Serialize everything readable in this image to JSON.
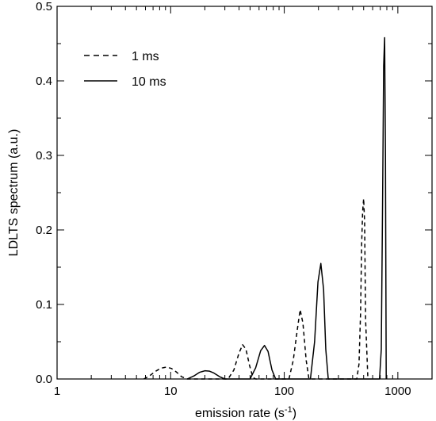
{
  "chart_data": {
    "type": "line",
    "xscale": "log",
    "xlim": [
      1,
      2000
    ],
    "ylim": [
      0,
      0.5
    ],
    "xlabel": "emission rate (s",
    "xlabel_sup": "-1",
    "xlabel_end": ")",
    "ylabel": "LDLTS spectrum (a.u.)",
    "xticks": [
      {
        "value": 1,
        "label": "1"
      },
      {
        "value": 10,
        "label": "10"
      },
      {
        "value": 100,
        "label": "100"
      },
      {
        "value": 1000,
        "label": "1000"
      }
    ],
    "yticks": [
      {
        "value": 0,
        "label": "0.0"
      },
      {
        "value": 0.1,
        "label": "0.1"
      },
      {
        "value": 0.2,
        "label": "0.2"
      },
      {
        "value": 0.3,
        "label": "0.3"
      },
      {
        "value": 0.4,
        "label": "0.4"
      },
      {
        "value": 0.5,
        "label": "0.5"
      }
    ],
    "grid": false,
    "legend_position": "top-left",
    "series": [
      {
        "name": "1 ms",
        "style": "dashed",
        "x": [
          5.8,
          6.5,
          7.3,
          8.2,
          9.2,
          10.2,
          11.3,
          12.5,
          14.0,
          32.0,
          36.0,
          40.0,
          43.0,
          46.0,
          49.5,
          53.0,
          56.0,
          110,
          120,
          130,
          138,
          146,
          156,
          165,
          435,
          455,
          470,
          480,
          490,
          500,
          510,
          520,
          545
        ],
        "y": [
          0,
          0.004,
          0.01,
          0.0145,
          0.016,
          0.014,
          0.009,
          0.003,
          0,
          0,
          0.012,
          0.035,
          0.046,
          0.04,
          0.018,
          0.002,
          0,
          0,
          0.025,
          0.065,
          0.093,
          0.075,
          0.025,
          0,
          0,
          0.02,
          0.09,
          0.18,
          0.225,
          0.242,
          0.21,
          0.08,
          0
        ]
      },
      {
        "name": "10 ms",
        "style": "solid",
        "x": [
          14.0,
          16.0,
          18.0,
          20.0,
          22.0,
          24.0,
          27.0,
          30.0,
          50.0,
          56.0,
          62.0,
          67.0,
          72.0,
          78.0,
          84.0,
          170,
          185,
          198,
          210,
          222,
          232,
          244,
          690,
          715,
          735,
          750,
          765,
          778,
          790
        ],
        "y": [
          0,
          0.004,
          0.009,
          0.011,
          0.0105,
          0.008,
          0.003,
          0,
          0,
          0.015,
          0.038,
          0.045,
          0.037,
          0.012,
          0,
          0,
          0.05,
          0.13,
          0.155,
          0.12,
          0.04,
          0,
          0,
          0.04,
          0.25,
          0.42,
          0.458,
          0.3,
          0
        ]
      }
    ]
  }
}
